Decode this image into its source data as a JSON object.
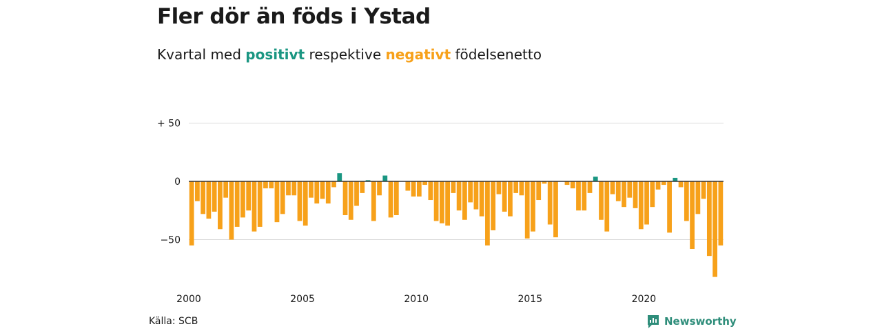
{
  "title": "Fler dör än föds i Ystad",
  "subtitle": {
    "prefix": "Kvartal med",
    "positive": "positivt",
    "middle": "respektive",
    "negative": "negativt",
    "suffix": "födelsenetto"
  },
  "source": "Källa: SCB",
  "brand": {
    "name": "Newsworthy",
    "icon": "newsworthy-logo-icon"
  },
  "colors": {
    "positive": "#1a9682",
    "negative": "#f7a11a",
    "grid": "#d9d9d9",
    "zero_line": "#333333"
  },
  "chart_data": {
    "type": "bar",
    "title": "Fler dör än föds i Ystad",
    "xlabel": "",
    "ylabel": "",
    "ylim": [
      -85,
      55
    ],
    "yticks": [
      {
        "value": 50,
        "label": "+ 50"
      },
      {
        "value": 0,
        "label": "0"
      },
      {
        "value": -50,
        "label": "−50"
      }
    ],
    "xticks": [
      "2000",
      "2005",
      "2010",
      "2015",
      "2020"
    ],
    "x_start": "2000Q1",
    "x_end": "2023Q2",
    "categories": [
      "2000Q1",
      "2000Q2",
      "2000Q3",
      "2000Q4",
      "2001Q1",
      "2001Q2",
      "2001Q3",
      "2001Q4",
      "2002Q1",
      "2002Q2",
      "2002Q3",
      "2002Q4",
      "2003Q1",
      "2003Q2",
      "2003Q3",
      "2003Q4",
      "2004Q1",
      "2004Q2",
      "2004Q3",
      "2004Q4",
      "2005Q1",
      "2005Q2",
      "2005Q3",
      "2005Q4",
      "2006Q1",
      "2006Q2",
      "2006Q3",
      "2006Q4",
      "2007Q1",
      "2007Q2",
      "2007Q3",
      "2007Q4",
      "2008Q1",
      "2008Q2",
      "2008Q3",
      "2008Q4",
      "2009Q1",
      "2009Q2",
      "2009Q3",
      "2009Q4",
      "2010Q1",
      "2010Q2",
      "2010Q3",
      "2010Q4",
      "2011Q1",
      "2011Q2",
      "2011Q3",
      "2011Q4",
      "2012Q1",
      "2012Q2",
      "2012Q3",
      "2012Q4",
      "2013Q1",
      "2013Q2",
      "2013Q3",
      "2013Q4",
      "2014Q1",
      "2014Q2",
      "2014Q3",
      "2014Q4",
      "2015Q1",
      "2015Q2",
      "2015Q3",
      "2015Q4",
      "2016Q1",
      "2016Q2",
      "2016Q3",
      "2016Q4",
      "2017Q1",
      "2017Q2",
      "2017Q3",
      "2017Q4",
      "2018Q1",
      "2018Q2",
      "2018Q3",
      "2018Q4",
      "2019Q1",
      "2019Q2",
      "2019Q3",
      "2019Q4",
      "2020Q1",
      "2020Q2",
      "2020Q3",
      "2020Q4",
      "2021Q1",
      "2021Q2",
      "2021Q3",
      "2021Q4",
      "2022Q1",
      "2022Q2",
      "2022Q3",
      "2022Q4",
      "2023Q1",
      "2023Q2"
    ],
    "values": [
      -55,
      -17,
      -28,
      -32,
      -26,
      -41,
      -14,
      -50,
      -39,
      -31,
      -25,
      -43,
      -39,
      -6,
      -6,
      -35,
      -28,
      -12,
      -12,
      -34,
      -38,
      -14,
      -19,
      -15,
      -19,
      -5,
      7,
      -29,
      -33,
      -21,
      -10,
      1,
      -34,
      -12,
      5,
      -31,
      -29,
      0,
      -8,
      -13,
      -13,
      -3,
      -16,
      -34,
      -36,
      -38,
      -10,
      -25,
      -33,
      -18,
      -24,
      -30,
      -55,
      -42,
      -11,
      -26,
      -30,
      -10,
      -12,
      -49,
      -43,
      -16,
      -2,
      -37,
      -48,
      0,
      -3,
      -6,
      -25,
      -25,
      -10,
      4,
      -33,
      -43,
      -11,
      -17,
      -22,
      -14,
      -23,
      -41,
      -37,
      -22,
      -7,
      -3,
      -44,
      3,
      -5,
      -34,
      -58,
      -28,
      -15,
      -64,
      -82,
      -55
    ],
    "series": [
      {
        "values_ref": "values"
      }
    ]
  }
}
